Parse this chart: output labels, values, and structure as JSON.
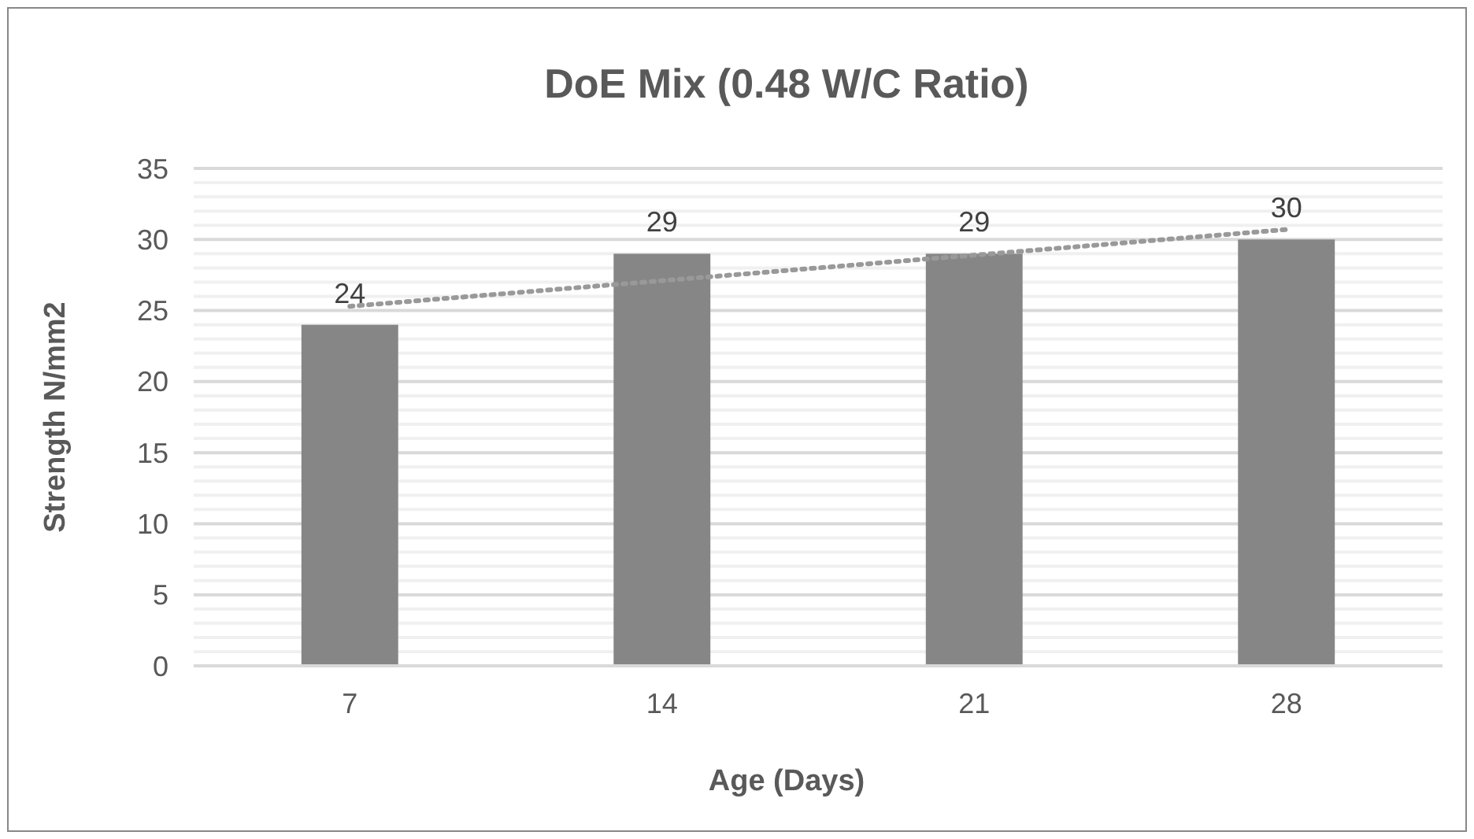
{
  "chart_data": {
    "type": "bar",
    "title": "DoE Mix (0.48 W/C Ratio)",
    "xlabel": "Age (Days)",
    "ylabel": "Strength N/mm2",
    "categories": [
      "7",
      "14",
      "21",
      "28"
    ],
    "series": [
      {
        "color": "#868686",
        "values": [
          24,
          29,
          29,
          30
        ],
        "value_labels": [
          "24",
          "29",
          "29",
          "30"
        ]
      },
      {
        "type": "line",
        "x": [
          "7",
          "14",
          "21",
          "28"
        ],
        "color": "#999999",
        "line_style": "dotted",
        "values": [
          25.3,
          27.1,
          28.9,
          30.7
        ]
      }
    ],
    "ylim": [
      0,
      35
    ],
    "yticks": [
      0,
      5,
      10,
      15,
      20,
      25,
      30,
      35
    ],
    "grid": "y"
  }
}
